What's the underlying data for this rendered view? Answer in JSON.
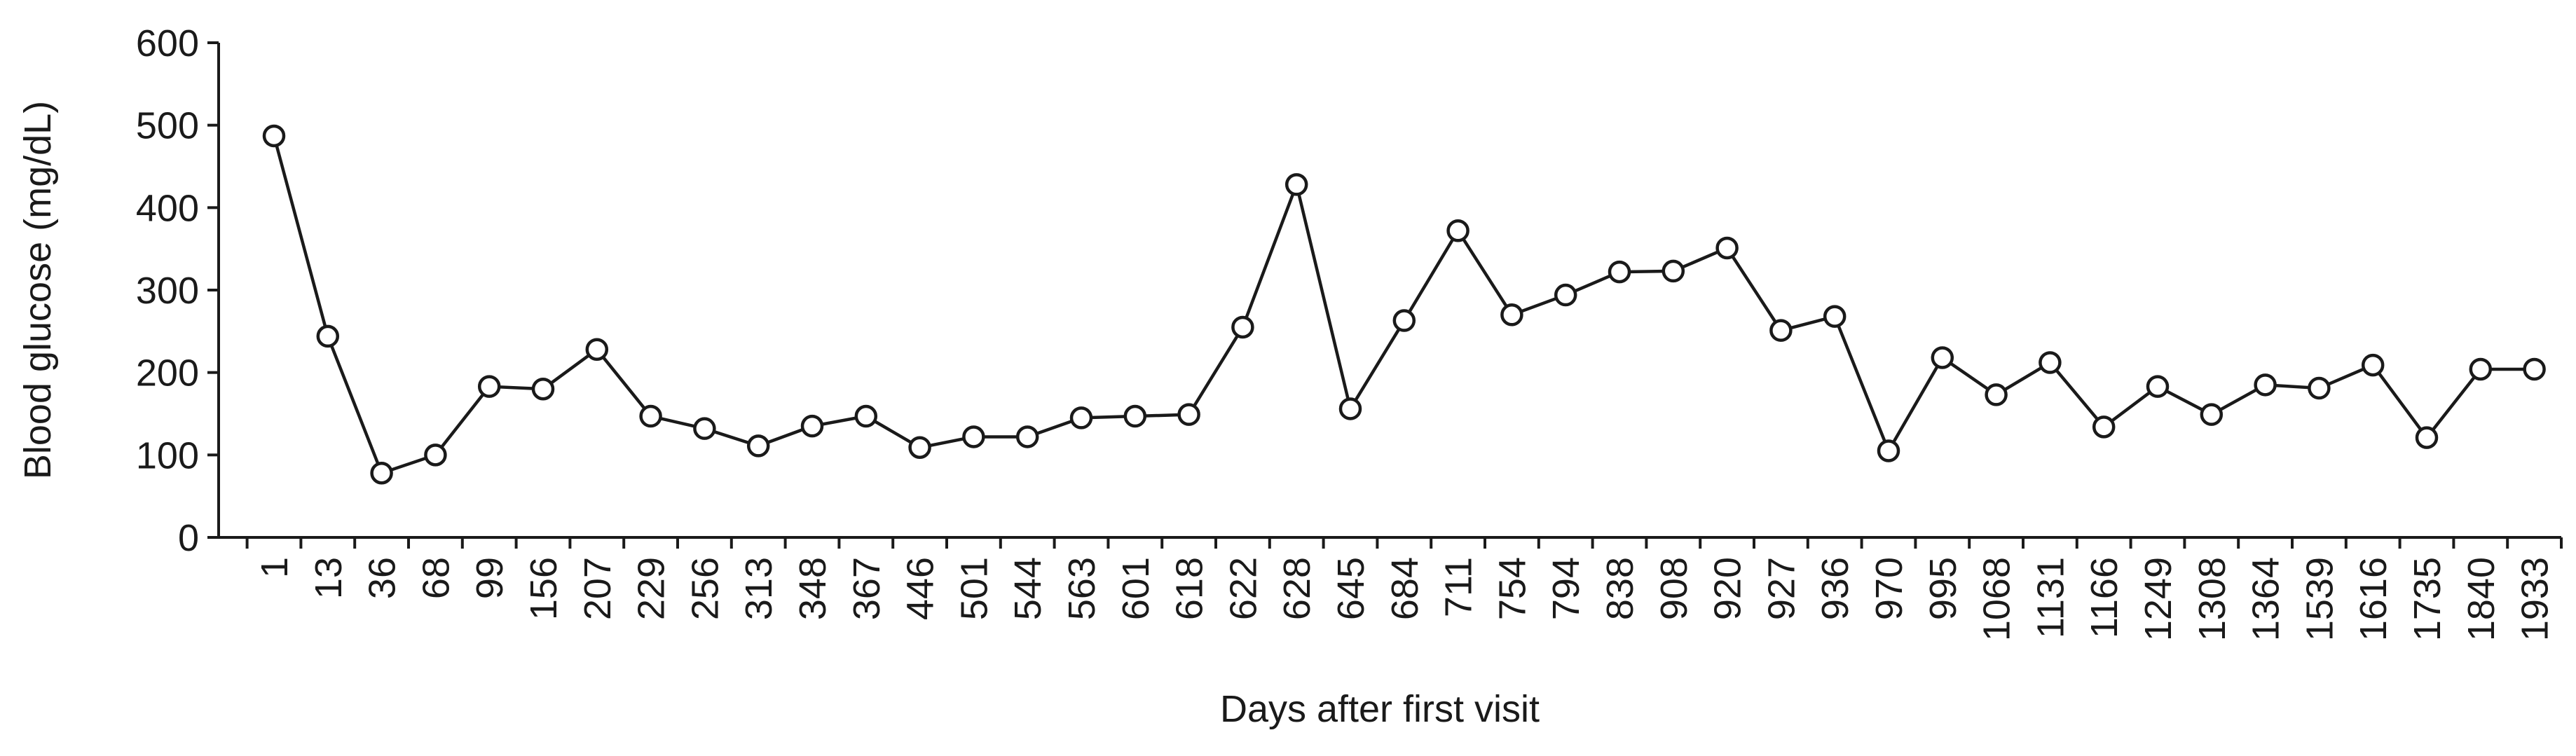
{
  "chart_data": {
    "type": "line",
    "x_label": "Days after first visit",
    "y_label": "Blood glucose (mg/dL)",
    "categories": [
      "1",
      "13",
      "36",
      "68",
      "99",
      "156",
      "207",
      "229",
      "256",
      "313",
      "348",
      "367",
      "446",
      "501",
      "544",
      "563",
      "601",
      "618",
      "622",
      "628",
      "645",
      "684",
      "711",
      "754",
      "794",
      "838",
      "908",
      "920",
      "927",
      "936",
      "970",
      "995",
      "1068",
      "1131",
      "1166",
      "1249",
      "1308",
      "1364",
      "1539",
      "1616",
      "1735",
      "1840",
      "1933"
    ],
    "series": [
      {
        "color": "#1a1a1a",
        "values": [
          487,
          244,
          78,
          100,
          183,
          180,
          228,
          147,
          132,
          111,
          135,
          147,
          109,
          122,
          122,
          145,
          147,
          149,
          255,
          428,
          156,
          263,
          372,
          270,
          294,
          322,
          323,
          351,
          251,
          268,
          105,
          218,
          173,
          212,
          134,
          183,
          149,
          185,
          181,
          209,
          121,
          204,
          204
        ]
      }
    ],
    "ylim": [
      0,
      600
    ],
    "yticks": [
      0,
      100,
      200,
      300,
      400,
      500,
      600
    ],
    "grid": false
  }
}
